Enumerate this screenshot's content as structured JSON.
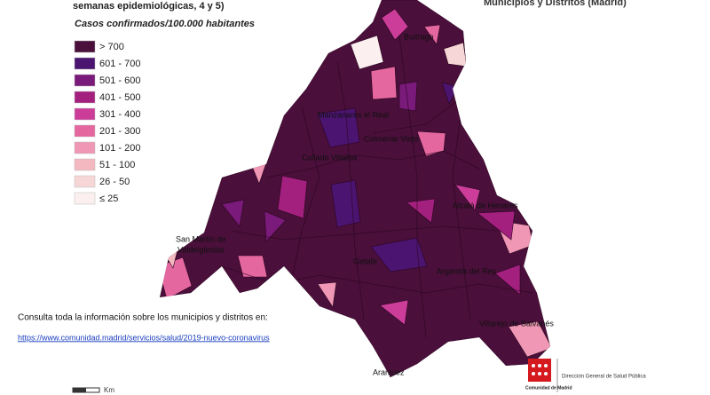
{
  "header": {
    "subtitle_fragment": "semanas epidemiológicas, 4 y 5)",
    "title_fragment": "Municipios y Distritos (Madrid)",
    "unit": "Casos confirmados/100.000 habitantes"
  },
  "legend": [
    {
      "label": "> 700",
      "color": "#4a0f3a"
    },
    {
      "label": "601 - 700",
      "color": "#4b1470"
    },
    {
      "label": "501 - 600",
      "color": "#7a1a7a"
    },
    {
      "label": "401 - 500",
      "color": "#a4207f"
    },
    {
      "label": "301 - 400",
      "color": "#cc3d9a"
    },
    {
      "label": "201 - 300",
      "color": "#e5679f"
    },
    {
      "label": "101 - 200",
      "color": "#ef97b4"
    },
    {
      "label": "51 - 100",
      "color": "#f4b8c0"
    },
    {
      "label": "26 - 50",
      "color": "#f6d6d7"
    },
    {
      "label": "≤ 25",
      "color": "#fbf0ef"
    }
  ],
  "map": {
    "labels": [
      "Buitrago",
      "Manzanares el Real",
      "Colmenar Viejo",
      "Collado Villalba",
      "San Martín de",
      "Valdeiglesias",
      "Alcalá de Henares",
      "Getafe",
      "Arganda del Rey",
      "Villarejo de Salvanés",
      "Aranjuez"
    ]
  },
  "footer": {
    "note": "Consulta toda la información sobre los municipios y distritos en:",
    "link": "https://www.comunidad.madrid/servicios/salud/2019-nuevo-coronavirus",
    "scale_unit": "Km",
    "logo": "Comunidad de Madrid",
    "department": "Dirección General de Salud Pública"
  }
}
